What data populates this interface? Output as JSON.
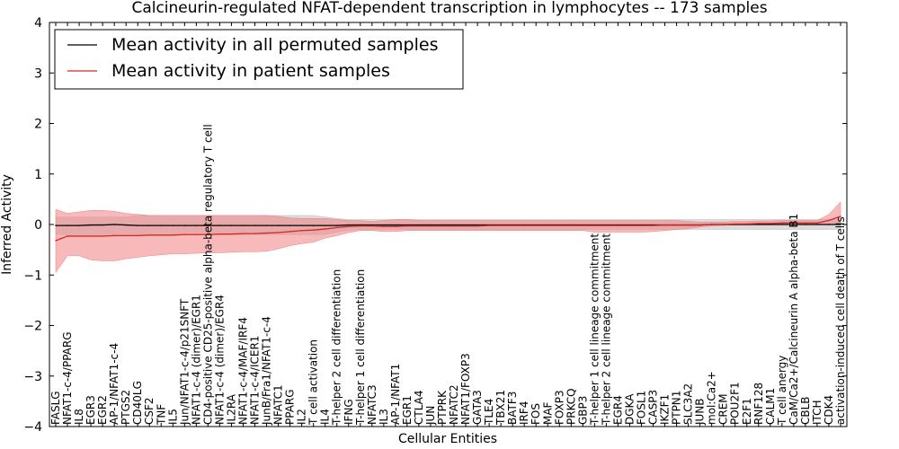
{
  "chart_data": {
    "type": "line",
    "title": "Calcineurin-regulated NFAT-dependent transcription in lymphocytes -- 173 samples",
    "xlabel": "Cellular Entities",
    "ylabel": "Inferred Activity",
    "ylim": [
      -4,
      4
    ],
    "yticks": [
      -4,
      -3,
      -2,
      -1,
      0,
      1,
      2,
      3,
      4
    ],
    "legend_position": "top-left",
    "colors": {
      "permuted": "#000000",
      "patient": "#d62728",
      "permuted_band": "#c8c8c8",
      "patient_band": "#f08080"
    },
    "categories": [
      "FASLG",
      "NFAT1-c-4/PPARG",
      "IL8",
      "EGR3",
      "EGR2",
      "AP-1/NFAT1-c-4",
      "PTGS2",
      "CD40LG",
      "CSF2",
      "TNF",
      "IL5",
      "Jun/NFAT1-c-4/p21SNFT",
      "NFAT1-c-4 (dimer)/EGR1",
      "CD4-positive CD25-positive alpha-beta regulatory T cell",
      "NFAT1-c-4 (dimer)/EGR4",
      "IL2RA",
      "NFAT1-c-4/MAF/IRF4",
      "NFAT1-c-4/ICER1",
      "JunB/Fra1/NFAT1-c-4",
      "NFATC1",
      "PPARG",
      "IL2",
      "T cell activation",
      "IL4",
      "T-helper 2 cell differentiation",
      "IFNG",
      "T-helper 1 cell differentiation",
      "NFATC3",
      "IL3",
      "AP-1/NFAT1",
      "EGR1",
      "CTLA4",
      "JUN",
      "PTPRK",
      "NFATC2",
      "NFAT1/FOXP3",
      "GATA3",
      "TLE4",
      "TBX21",
      "BATF3",
      "IRF4",
      "FOS",
      "MAF",
      "FOXP3",
      "PRKCQ",
      "GBP3",
      "T-helper 1 cell lineage commitment",
      "T-helper 2 cell lineage commitment",
      "EGR4",
      "DGKA",
      "FOSL1",
      "CASP3",
      "IKZF1",
      "PTPN1",
      "SLC3A2",
      "JUNB",
      "mol:Ca2+",
      "CREM",
      "POU2F1",
      "E2F1",
      "RNF128",
      "CALM1",
      "T cell anergy",
      "CaM/Ca2+/Calcineurin A alpha-beta B1",
      "CBLB",
      "ITCH",
      "CDK4",
      "activation-induced cell death of T cells"
    ],
    "series": [
      {
        "name": "Mean activity in all permuted samples",
        "values": [
          -0.02,
          -0.02,
          -0.02,
          -0.01,
          -0.01,
          0.0,
          -0.01,
          -0.02,
          -0.02,
          -0.02,
          -0.02,
          -0.02,
          -0.02,
          -0.02,
          -0.02,
          -0.02,
          -0.02,
          -0.02,
          -0.02,
          -0.02,
          -0.02,
          -0.02,
          -0.02,
          -0.02,
          -0.02,
          -0.01,
          -0.01,
          -0.01,
          -0.01,
          -0.01,
          -0.01,
          -0.01,
          -0.01,
          -0.01,
          -0.01,
          -0.01,
          -0.01,
          -0.01,
          -0.01,
          -0.01,
          -0.01,
          -0.01,
          -0.01,
          -0.01,
          -0.01,
          -0.01,
          -0.01,
          -0.01,
          -0.01,
          -0.01,
          -0.01,
          -0.01,
          -0.01,
          -0.01,
          -0.01,
          -0.01,
          0.0,
          0.0,
          0.0,
          0.0,
          0.0,
          0.0,
          0.0,
          0.0,
          0.0,
          0.0,
          0.0,
          0.0
        ],
        "lower": [
          -0.2,
          -0.2,
          -0.2,
          -0.2,
          -0.2,
          -0.2,
          -0.2,
          -0.2,
          -0.2,
          -0.2,
          -0.2,
          -0.2,
          -0.2,
          -0.2,
          -0.2,
          -0.2,
          -0.2,
          -0.2,
          -0.2,
          -0.2,
          -0.2,
          -0.2,
          -0.2,
          -0.2,
          -0.15,
          -0.12,
          -0.1,
          -0.1,
          -0.1,
          -0.1,
          -0.1,
          -0.1,
          -0.1,
          -0.1,
          -0.1,
          -0.1,
          -0.1,
          -0.1,
          -0.1,
          -0.1,
          -0.1,
          -0.1,
          -0.1,
          -0.1,
          -0.1,
          -0.1,
          -0.1,
          -0.1,
          -0.1,
          -0.1,
          -0.1,
          -0.1,
          -0.1,
          -0.1,
          -0.1,
          -0.1,
          -0.1,
          -0.1,
          -0.1,
          -0.1,
          -0.1,
          -0.1,
          -0.1,
          -0.1,
          -0.1,
          -0.1,
          -0.1,
          -0.1
        ],
        "upper": [
          0.15,
          0.15,
          0.15,
          0.15,
          0.15,
          0.15,
          0.15,
          0.18,
          0.18,
          0.18,
          0.18,
          0.18,
          0.18,
          0.18,
          0.18,
          0.18,
          0.18,
          0.18,
          0.18,
          0.18,
          0.18,
          0.18,
          0.18,
          0.15,
          0.12,
          0.1,
          0.1,
          0.1,
          0.1,
          0.1,
          0.1,
          0.1,
          0.1,
          0.1,
          0.1,
          0.1,
          0.1,
          0.1,
          0.1,
          0.1,
          0.1,
          0.1,
          0.1,
          0.1,
          0.1,
          0.1,
          0.1,
          0.1,
          0.1,
          0.1,
          0.1,
          0.1,
          0.1,
          0.1,
          0.1,
          0.1,
          0.1,
          0.1,
          0.1,
          0.1,
          0.1,
          0.1,
          0.1,
          0.1,
          0.1,
          0.1,
          0.1,
          0.1
        ]
      },
      {
        "name": "Mean activity in patient samples",
        "values": [
          -0.32,
          -0.23,
          -0.23,
          -0.23,
          -0.23,
          -0.22,
          -0.22,
          -0.22,
          -0.21,
          -0.21,
          -0.21,
          -0.2,
          -0.2,
          -0.2,
          -0.19,
          -0.19,
          -0.18,
          -0.18,
          -0.17,
          -0.16,
          -0.14,
          -0.12,
          -0.11,
          -0.09,
          -0.06,
          -0.04,
          -0.03,
          -0.03,
          -0.04,
          -0.04,
          -0.03,
          -0.03,
          -0.03,
          -0.03,
          -0.03,
          -0.03,
          -0.03,
          -0.02,
          -0.02,
          -0.02,
          -0.02,
          -0.02,
          -0.02,
          -0.02,
          -0.02,
          -0.02,
          -0.02,
          -0.02,
          -0.02,
          -0.02,
          -0.02,
          -0.02,
          -0.01,
          -0.01,
          -0.01,
          -0.01,
          0.0,
          0.0,
          0.01,
          0.01,
          0.02,
          0.02,
          0.03,
          0.03,
          0.03,
          0.03,
          0.08,
          0.16
        ],
        "lower": [
          -0.95,
          -0.62,
          -0.62,
          -0.7,
          -0.72,
          -0.72,
          -0.68,
          -0.65,
          -0.62,
          -0.6,
          -0.58,
          -0.58,
          -0.57,
          -0.56,
          -0.56,
          -0.55,
          -0.54,
          -0.54,
          -0.53,
          -0.48,
          -0.42,
          -0.38,
          -0.35,
          -0.27,
          -0.22,
          -0.16,
          -0.12,
          -0.12,
          -0.14,
          -0.14,
          -0.12,
          -0.12,
          -0.12,
          -0.12,
          -0.12,
          -0.12,
          -0.12,
          -0.12,
          -0.12,
          -0.12,
          -0.12,
          -0.12,
          -0.12,
          -0.12,
          -0.12,
          -0.12,
          -0.15,
          -0.15,
          -0.15,
          -0.15,
          -0.15,
          -0.14,
          -0.12,
          -0.1,
          -0.08,
          -0.05,
          -0.03,
          -0.02,
          -0.01,
          -0.01,
          0.0,
          0.0,
          0.0,
          0.0,
          0.0,
          0.0,
          0.0,
          0.0
        ],
        "upper": [
          0.3,
          0.22,
          0.25,
          0.28,
          0.28,
          0.26,
          0.22,
          0.2,
          0.18,
          0.18,
          0.18,
          0.18,
          0.18,
          0.18,
          0.18,
          0.18,
          0.18,
          0.18,
          0.18,
          0.16,
          0.13,
          0.12,
          0.12,
          0.12,
          0.1,
          0.08,
          0.08,
          0.06,
          0.08,
          0.1,
          0.1,
          0.08,
          0.08,
          0.08,
          0.08,
          0.08,
          0.08,
          0.08,
          0.08,
          0.08,
          0.08,
          0.08,
          0.08,
          0.08,
          0.08,
          0.08,
          0.08,
          0.08,
          0.08,
          0.08,
          0.08,
          0.08,
          0.08,
          0.08,
          0.06,
          0.05,
          0.05,
          0.05,
          0.06,
          0.06,
          0.07,
          0.07,
          0.08,
          0.08,
          0.08,
          0.08,
          0.2,
          0.45
        ]
      }
    ]
  }
}
